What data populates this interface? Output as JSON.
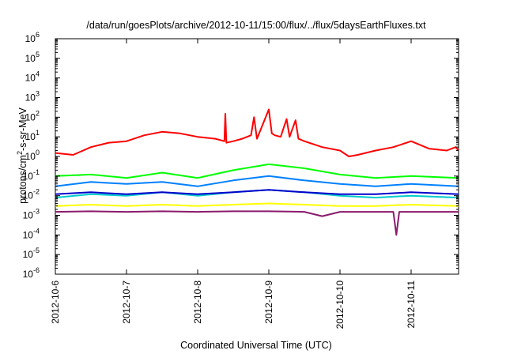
{
  "chart_data": {
    "type": "line",
    "title": "/data/run/goesPlots/archive/2012-10-11/15:00/flux/../flux/5daysEarthFluxes.txt",
    "xlabel": "Coordinated Universal Time (UTC)",
    "ylabel_parts": {
      "base": "protons/cm",
      "sup": "2",
      "rest": "-s-sr-MeV"
    },
    "y_scale": "log",
    "ylim": [
      1e-06,
      1000000.0
    ],
    "y_ticks": [
      {
        "value": 1e-06,
        "base": "10",
        "exp": "-6"
      },
      {
        "value": 1e-05,
        "base": "10",
        "exp": "-5"
      },
      {
        "value": 0.0001,
        "base": "10",
        "exp": "-4"
      },
      {
        "value": 0.001,
        "base": "10",
        "exp": "-3"
      },
      {
        "value": 0.01,
        "base": "10",
        "exp": "-2"
      },
      {
        "value": 0.1,
        "base": "10",
        "exp": "-1"
      },
      {
        "value": 1,
        "base": "10",
        "exp": "0"
      },
      {
        "value": 10,
        "base": "10",
        "exp": "1"
      },
      {
        "value": 100,
        "base": "10",
        "exp": "2"
      },
      {
        "value": 1000,
        "base": "10",
        "exp": "3"
      },
      {
        "value": 10000,
        "base": "10",
        "exp": "4"
      },
      {
        "value": 100000,
        "base": "10",
        "exp": "5"
      },
      {
        "value": 1000000,
        "base": "10",
        "exp": "6"
      }
    ],
    "xlim": [
      "2012-10-06",
      "2012-10-11 16:00"
    ],
    "x_ticks": [
      "2012-10-6",
      "2012-10-7",
      "2012-10-8",
      "2012-10-9",
      "2012-10-10",
      "2012-10-11"
    ],
    "grid": false,
    "series": [
      {
        "color": "#ff0000",
        "x": [
          "2012-10-06 00:00",
          "2012-10-06 06:00",
          "2012-10-06 12:00",
          "2012-10-06 18:00",
          "2012-10-07 00:00",
          "2012-10-07 06:00",
          "2012-10-07 12:00",
          "2012-10-07 18:00",
          "2012-10-08 00:00",
          "2012-10-08 06:00",
          "2012-10-08 09:00",
          "2012-10-08 09:20",
          "2012-10-08 09:40",
          "2012-10-08 12:00",
          "2012-10-08 15:00",
          "2012-10-08 18:00",
          "2012-10-08 19:00",
          "2012-10-08 20:00",
          "2012-10-09 00:00",
          "2012-10-09 01:00",
          "2012-10-09 02:00",
          "2012-10-09 04:00",
          "2012-10-09 06:00",
          "2012-10-09 07:00",
          "2012-10-09 09:00",
          "2012-10-09 10:00",
          "2012-10-09 12:00",
          "2012-10-09 18:00",
          "2012-10-10 00:00",
          "2012-10-10 03:00",
          "2012-10-10 06:00",
          "2012-10-10 12:00",
          "2012-10-10 18:00",
          "2012-10-11 00:00",
          "2012-10-11 06:00",
          "2012-10-11 12:00",
          "2012-10-11 15:00",
          "2012-10-11 16:00"
        ],
        "y": [
          1.5,
          1.2,
          3,
          5,
          6,
          12,
          18,
          15,
          10,
          8,
          6,
          150,
          5,
          6,
          8,
          12,
          100,
          8,
          250,
          15,
          12,
          10,
          80,
          10,
          70,
          8,
          6,
          3,
          2,
          1,
          1.2,
          2,
          3,
          6,
          2.5,
          2,
          3,
          2
        ]
      },
      {
        "color": "#00ff00",
        "x": [
          "2012-10-06 00:00",
          "2012-10-06 12:00",
          "2012-10-07 00:00",
          "2012-10-07 12:00",
          "2012-10-08 00:00",
          "2012-10-08 12:00",
          "2012-10-09 00:00",
          "2012-10-09 12:00",
          "2012-10-10 00:00",
          "2012-10-10 12:00",
          "2012-10-11 00:00",
          "2012-10-11 16:00"
        ],
        "y": [
          0.1,
          0.12,
          0.08,
          0.15,
          0.08,
          0.2,
          0.4,
          0.25,
          0.12,
          0.08,
          0.1,
          0.08
        ]
      },
      {
        "color": "#0080ff",
        "x": [
          "2012-10-06 00:00",
          "2012-10-06 12:00",
          "2012-10-07 00:00",
          "2012-10-07 12:00",
          "2012-10-08 00:00",
          "2012-10-08 12:00",
          "2012-10-09 00:00",
          "2012-10-09 12:00",
          "2012-10-10 00:00",
          "2012-10-10 12:00",
          "2012-10-11 00:00",
          "2012-10-11 16:00"
        ],
        "y": [
          0.03,
          0.05,
          0.04,
          0.05,
          0.03,
          0.06,
          0.1,
          0.06,
          0.04,
          0.03,
          0.04,
          0.03
        ]
      },
      {
        "color": "#00cccc",
        "x": [
          "2012-10-06 00:00",
          "2012-10-06 12:00",
          "2012-10-07 00:00",
          "2012-10-07 12:00",
          "2012-10-08 00:00",
          "2012-10-08 12:00",
          "2012-10-09 00:00",
          "2012-10-09 12:00",
          "2012-10-10 00:00",
          "2012-10-10 12:00",
          "2012-10-11 00:00",
          "2012-10-11 16:00"
        ],
        "y": [
          0.008,
          0.012,
          0.01,
          0.015,
          0.01,
          0.015,
          0.02,
          0.015,
          0.01,
          0.008,
          0.01,
          0.008
        ]
      },
      {
        "color": "#0000cc",
        "x": [
          "2012-10-06 00:00",
          "2012-10-06 12:00",
          "2012-10-07 00:00",
          "2012-10-07 12:00",
          "2012-10-08 00:00",
          "2012-10-08 12:00",
          "2012-10-09 00:00",
          "2012-10-09 12:00",
          "2012-10-10 00:00",
          "2012-10-10 12:00",
          "2012-10-11 00:00",
          "2012-10-11 16:00"
        ],
        "y": [
          0.012,
          0.015,
          0.012,
          0.015,
          0.012,
          0.015,
          0.02,
          0.015,
          0.012,
          0.012,
          0.015,
          0.012
        ]
      },
      {
        "color": "#ffff00",
        "x": [
          "2012-10-06 00:00",
          "2012-10-06 12:00",
          "2012-10-07 00:00",
          "2012-10-07 12:00",
          "2012-10-08 00:00",
          "2012-10-08 12:00",
          "2012-10-09 00:00",
          "2012-10-09 12:00",
          "2012-10-10 00:00",
          "2012-10-10 12:00",
          "2012-10-11 00:00",
          "2012-10-11 16:00"
        ],
        "y": [
          0.003,
          0.0035,
          0.003,
          0.0035,
          0.003,
          0.0035,
          0.004,
          0.0035,
          0.003,
          0.003,
          0.0035,
          0.003
        ]
      },
      {
        "color": "#8b1a6b",
        "x": [
          "2012-10-06 00:00",
          "2012-10-06 12:00",
          "2012-10-07 00:00",
          "2012-10-07 12:00",
          "2012-10-08 00:00",
          "2012-10-08 12:00",
          "2012-10-09 00:00",
          "2012-10-09 12:00",
          "2012-10-09 18:00",
          "2012-10-10 00:00",
          "2012-10-10 12:00",
          "2012-10-10 18:00",
          "2012-10-10 19:00",
          "2012-10-10 20:00",
          "2012-10-11 00:00",
          "2012-10-11 16:00"
        ],
        "y": [
          0.0015,
          0.0016,
          0.0015,
          0.0016,
          0.0015,
          0.0016,
          0.0016,
          0.0015,
          0.0009,
          0.0015,
          0.0015,
          0.0015,
          0.0001,
          0.0015,
          0.0015,
          0.0015
        ]
      }
    ]
  }
}
